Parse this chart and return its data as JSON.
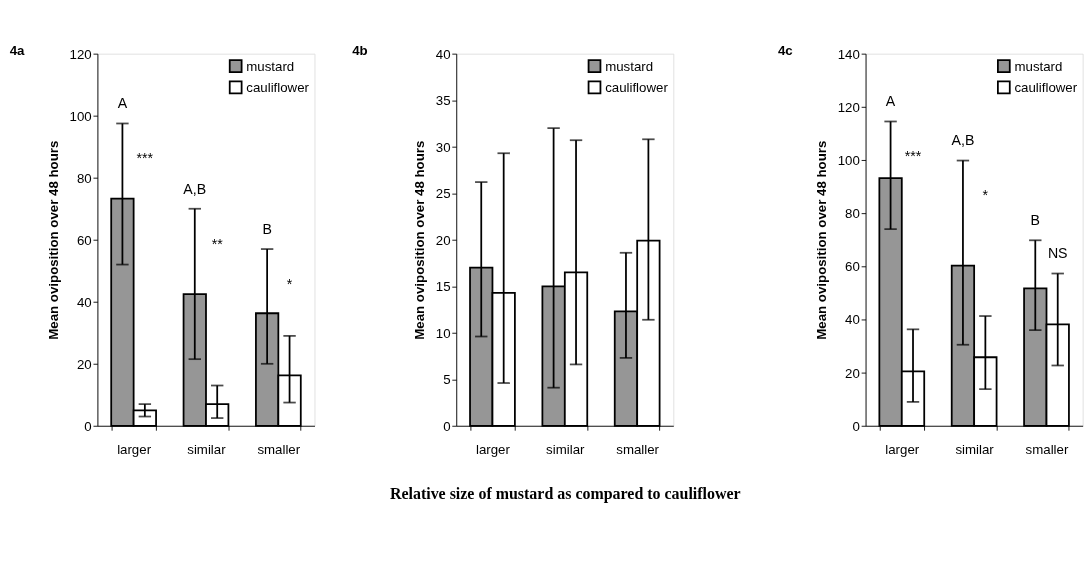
{
  "chart_data": [
    {
      "type": "bar",
      "title": "4a",
      "ylabel": "Mean oviposition over 48 hours",
      "categories": [
        "larger",
        "similar",
        "smaller"
      ],
      "ylim": [
        0,
        120
      ],
      "yticks": [
        0,
        20,
        40,
        60,
        80,
        100,
        120
      ],
      "grid": false,
      "legend": "top right",
      "series": [
        {
          "name": "mustard",
          "color": "#969696",
          "values": [
            73.3,
            42.5,
            36.3
          ],
          "errors": [
            [
              52,
              97.5
            ],
            [
              21.5,
              70
            ],
            [
              20,
              57
            ]
          ]
        },
        {
          "name": "cauliflower",
          "color": "#ffffff",
          "values": [
            5,
            7,
            16.3
          ],
          "errors": [
            [
              3,
              7
            ],
            [
              2.5,
              13
            ],
            [
              7.5,
              29
            ]
          ]
        }
      ],
      "annotations": [
        "A",
        "***",
        "A,B",
        "**",
        "B",
        "*"
      ]
    },
    {
      "type": "bar",
      "title": "4b",
      "ylabel": "Mean oviposition over 48 hours",
      "xlabel": "Relative size of mustard as compared to cauliflower",
      "categories": [
        "larger",
        "similar",
        "smaller"
      ],
      "ylim": [
        0,
        40
      ],
      "yticks": [
        0,
        5,
        10,
        15,
        20,
        25,
        30,
        35,
        40
      ],
      "grid": false,
      "legend": "top right",
      "series": [
        {
          "name": "mustard",
          "color": "#969696",
          "values": [
            17,
            15,
            12.3
          ],
          "errors": [
            [
              9.6,
              26.2
            ],
            [
              4.1,
              32
            ],
            [
              7.3,
              18.6
            ]
          ]
        },
        {
          "name": "cauliflower",
          "color": "#ffffff",
          "values": [
            14.3,
            16.5,
            19.9
          ],
          "errors": [
            [
              4.6,
              29.3
            ],
            [
              6.6,
              30.7
            ],
            [
              11.4,
              30.8
            ]
          ]
        }
      ]
    },
    {
      "type": "bar",
      "title": "4c",
      "ylabel": "Mean oviposition over 48 hours",
      "categories": [
        "larger",
        "similar",
        "smaller"
      ],
      "ylim": [
        0,
        140
      ],
      "yticks": [
        0,
        20,
        40,
        60,
        80,
        100,
        120,
        140
      ],
      "grid": false,
      "legend": "top right",
      "series": [
        {
          "name": "mustard",
          "color": "#969696",
          "values": [
            93.2,
            60.3,
            51.7
          ],
          "errors": [
            [
              74,
              114.5
            ],
            [
              30.5,
              99.8
            ],
            [
              36,
              69.8
            ]
          ]
        },
        {
          "name": "cauliflower",
          "color": "#ffffff",
          "values": [
            20.5,
            25.8,
            38.2
          ],
          "errors": [
            [
              9,
              36.3
            ],
            [
              13.8,
              41.3
            ],
            [
              22.7,
              57.3
            ]
          ]
        }
      ],
      "annotations": [
        "A",
        "***",
        "A,B",
        "*",
        "B",
        "NS"
      ]
    }
  ]
}
